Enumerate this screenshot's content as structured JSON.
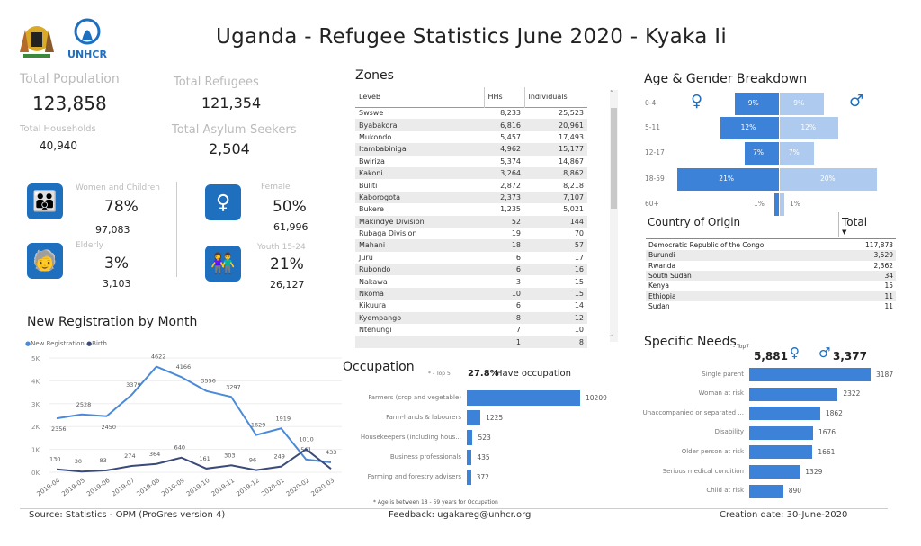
{
  "header": {
    "title": "Uganda - Refugee Statistics June 2020 - Kyaka Ii",
    "logo_text": "UNHCR"
  },
  "kpis": {
    "total_population_label": "Total Population",
    "total_population": "123,858",
    "total_households_label": "Total Households",
    "total_households": "40,940",
    "total_refugees_label": "Total Refugees",
    "total_refugees": "121,354",
    "total_asylum_label": "Total Asylum-Seekers",
    "total_asylum": "2,504"
  },
  "groups": [
    {
      "label": "Women and Children",
      "pct": "78%",
      "count": "97,083",
      "icon": "women-children-icon"
    },
    {
      "label": "Elderly",
      "pct": "3%",
      "count": "3,103",
      "icon": "elderly-icon"
    },
    {
      "label": "Female",
      "pct": "50%",
      "count": "61,996",
      "icon": "female-icon"
    },
    {
      "label": "Youth 15-24",
      "pct": "21%",
      "count": "26,127",
      "icon": "youth-icon"
    }
  ],
  "zones": {
    "title": "Zones",
    "headers": [
      "LeveB",
      "HHs",
      "Individuals"
    ],
    "rows": [
      [
        "Swswe",
        "8,233",
        "25,523"
      ],
      [
        "Byabakora",
        "6,816",
        "20,961"
      ],
      [
        "Mukondo",
        "5,457",
        "17,493"
      ],
      [
        "Itambabiniga",
        "4,962",
        "15,177"
      ],
      [
        "Bwiriza",
        "5,374",
        "14,867"
      ],
      [
        "Kakoni",
        "3,264",
        "8,862"
      ],
      [
        "Buliti",
        "2,872",
        "8,218"
      ],
      [
        "Kaborogota",
        "2,373",
        "7,107"
      ],
      [
        "Bukere",
        "1,235",
        "5,021"
      ],
      [
        "Makindye Division",
        "52",
        "144"
      ],
      [
        "Rubaga Division",
        "19",
        "70"
      ],
      [
        "Mahani",
        "18",
        "57"
      ],
      [
        "Juru",
        "6",
        "17"
      ],
      [
        "Rubondo",
        "6",
        "16"
      ],
      [
        "Nakawa",
        "3",
        "15"
      ],
      [
        "Nkoma",
        "10",
        "15"
      ],
      [
        "Kikuura",
        "6",
        "14"
      ],
      [
        "Kyempango",
        "8",
        "12"
      ],
      [
        "Ntenungi",
        "7",
        "10"
      ],
      [
        "",
        "1",
        "8"
      ]
    ]
  },
  "age_gender": {
    "title": "Age & Gender Breakdown",
    "groups": [
      "0-4",
      "5-11",
      "12-17",
      "18-59",
      "60+"
    ],
    "female": [
      9,
      12,
      7,
      21,
      1
    ],
    "male": [
      9,
      12,
      7,
      20,
      1
    ],
    "female_color": "#3b82d8",
    "male_color": "#aecbef"
  },
  "country": {
    "title": "Country of Origin",
    "total_label": "Total",
    "rows": [
      [
        "Democratic Republic of the Congo",
        "117,873"
      ],
      [
        "Burundi",
        "3,529"
      ],
      [
        "Rwanda",
        "2,362"
      ],
      [
        "South Sudan",
        "34"
      ],
      [
        "Kenya",
        "15"
      ],
      [
        "Ethiopia",
        "11"
      ],
      [
        "Sudan",
        "11"
      ]
    ]
  },
  "registration": {
    "title": "New Registration by Month"
  },
  "occupation": {
    "title": "Occupation",
    "top_note": "* - Top 5",
    "pct": "27.8%",
    "pct_label": "Have occupation",
    "footnote": "* Age is between 18 - 59 years for Occupation"
  },
  "needs": {
    "title": "Specific Needs",
    "top_note": "- Top7",
    "female": "5,881",
    "male": "3,377"
  },
  "footer": {
    "source": "Source: Statistics - OPM (ProGres version 4)",
    "feedback": "Feedback: ugakareg@unhcr.org",
    "created": "Creation date: 30-June-2020"
  },
  "chart_data": [
    {
      "type": "line",
      "title": "New Registration by Month",
      "categories": [
        "2019-04",
        "2019-05",
        "2019-06",
        "2019-07",
        "2019-08",
        "2019-09",
        "2019-10",
        "2019-11",
        "2019-12",
        "2020-01",
        "2020-02",
        "2020-03"
      ],
      "series": [
        {
          "name": "New Registration",
          "color": "#4a8ad8",
          "values": [
            2356,
            2528,
            2450,
            3379,
            4622,
            4166,
            3556,
            3297,
            1629,
            1919,
            561,
            433
          ]
        },
        {
          "name": "Birth",
          "color": "#3a4a7a",
          "values": [
            130,
            30,
            83,
            274,
            364,
            640,
            161,
            303,
            96,
            249,
            1010,
            150
          ]
        }
      ],
      "yticks": [
        "0K",
        "1K",
        "2K",
        "3K",
        "4K",
        "5K"
      ],
      "ylim": [
        0,
        5000
      ],
      "legend": "top-left"
    },
    {
      "type": "bar",
      "title": "Occupation",
      "categories": [
        "Farmers (crop and vegetable)",
        "Farm-hands & labourers",
        "Housekeepers (including hous...",
        "Business professionals",
        "Farming and forestry advisers"
      ],
      "values": [
        10209,
        1225,
        523,
        435,
        372
      ]
    },
    {
      "type": "bar",
      "title": "Specific Needs",
      "categories": [
        "Single parent",
        "Woman at risk",
        "Unaccompanied or separated ...",
        "Disability",
        "Older person at risk",
        "Serious medical condition",
        "Child at risk"
      ],
      "values": [
        3187,
        2322,
        1862,
        1676,
        1661,
        1329,
        890
      ]
    }
  ]
}
